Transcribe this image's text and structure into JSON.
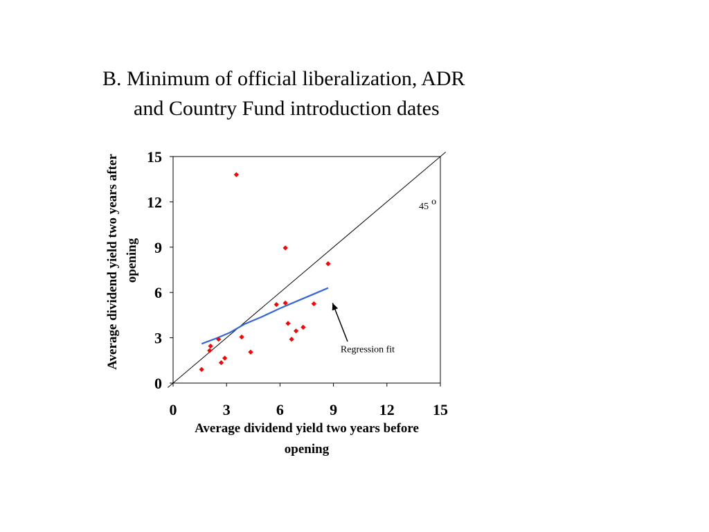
{
  "title": {
    "line1": "B. Minimum of official liberalization, ADR",
    "line2": "and Country Fund introduction dates"
  },
  "chart_data": {
    "type": "scatter",
    "xlabel": [
      "Average dividend yield two years before",
      "opening"
    ],
    "ylabel": [
      "Average dividend yield two years after",
      "opening"
    ],
    "xlim": [
      0,
      15
    ],
    "ylim": [
      0,
      15
    ],
    "xticks": [
      0,
      3,
      6,
      9,
      12,
      15
    ],
    "yticks": [
      0,
      3,
      6,
      9,
      12,
      15
    ],
    "xtick_labels": [
      "0",
      "3",
      "6",
      "9",
      "12",
      "15"
    ],
    "ytick_labels": [
      "0",
      "3",
      "6",
      "9",
      "12",
      "15"
    ],
    "grid": false,
    "legend": "none",
    "series": [
      {
        "marker": "diamond",
        "color": "#ff0000",
        "points": [
          {
            "x": 1.6,
            "y": 0.9
          },
          {
            "x": 2.05,
            "y": 2.15
          },
          {
            "x": 2.1,
            "y": 2.45
          },
          {
            "x": 2.55,
            "y": 2.9
          },
          {
            "x": 2.7,
            "y": 1.35
          },
          {
            "x": 2.9,
            "y": 1.65
          },
          {
            "x": 3.55,
            "y": 13.8
          },
          {
            "x": 3.85,
            "y": 3.05
          },
          {
            "x": 4.35,
            "y": 2.05
          },
          {
            "x": 5.8,
            "y": 5.2
          },
          {
            "x": 6.3,
            "y": 5.3
          },
          {
            "x": 6.3,
            "y": 8.95
          },
          {
            "x": 6.45,
            "y": 3.95
          },
          {
            "x": 6.65,
            "y": 2.9
          },
          {
            "x": 6.9,
            "y": 3.45
          },
          {
            "x": 7.3,
            "y": 3.7
          },
          {
            "x": 7.9,
            "y": 5.25
          },
          {
            "x": 8.7,
            "y": 7.9
          }
        ]
      },
      {
        "type": "line",
        "color": "#3366dd",
        "points": [
          {
            "x": 1.6,
            "y": 2.6
          },
          {
            "x": 2.5,
            "y": 3.0
          },
          {
            "x": 3.2,
            "y": 3.35
          },
          {
            "x": 4.0,
            "y": 3.9
          },
          {
            "x": 5.0,
            "y": 4.4
          },
          {
            "x": 6.0,
            "y": 4.95
          },
          {
            "x": 7.0,
            "y": 5.45
          },
          {
            "x": 8.0,
            "y": 5.95
          },
          {
            "x": 8.7,
            "y": 6.3
          }
        ]
      }
    ],
    "reference_line": {
      "from": [
        0,
        0
      ],
      "to": [
        15,
        15
      ],
      "color": "#000000"
    },
    "annotations": [
      {
        "text": "45",
        "superscript": "o",
        "x": 13.8,
        "y": 11.8
      },
      {
        "text": "Regression fit",
        "x": 9.4,
        "y": 2.05,
        "arrow_to": {
          "x": 8.95,
          "y": 5.3
        }
      }
    ]
  }
}
